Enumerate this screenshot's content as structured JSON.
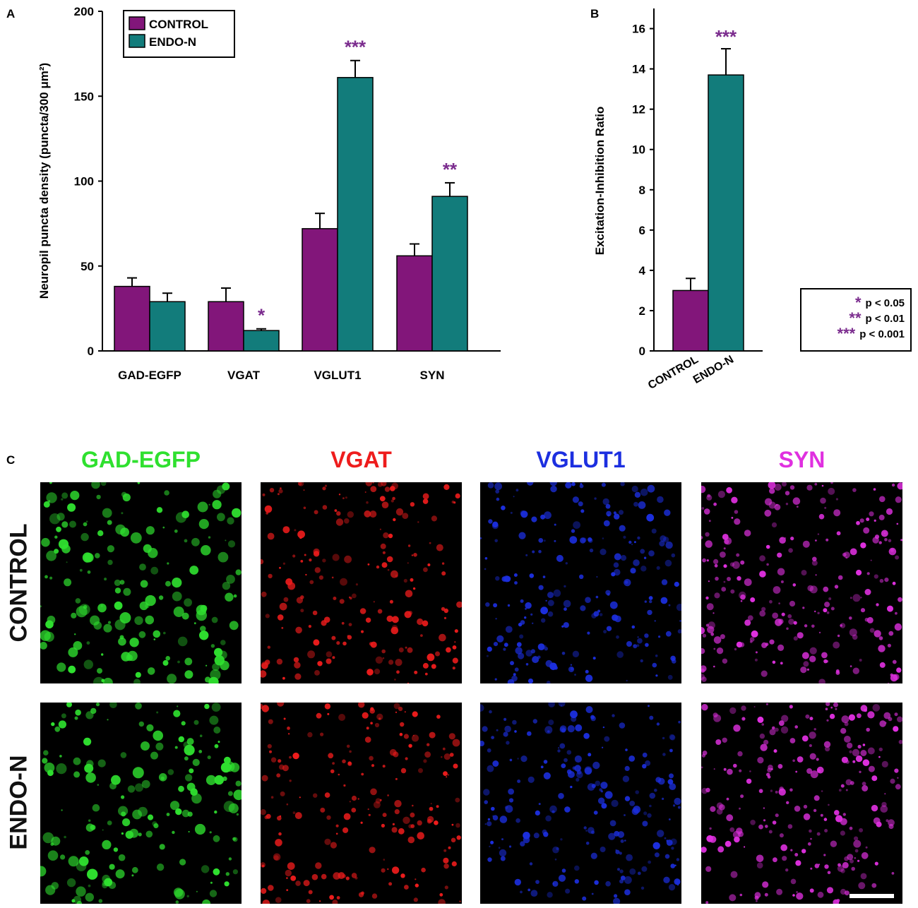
{
  "panels": {
    "a": "A",
    "b": "B",
    "c": "C"
  },
  "colors": {
    "control": "#82167a",
    "endo": "#127c7b",
    "sig": "#7b2c8e"
  },
  "chart_data": [
    {
      "type": "bar",
      "panel": "A",
      "categories": [
        "GAD-EGFP",
        "VGAT",
        "VGLUT1",
        "SYN"
      ],
      "series": [
        {
          "name": "CONTROL",
          "values": [
            38,
            29,
            72,
            56
          ],
          "errors": [
            5,
            8,
            9,
            7
          ]
        },
        {
          "name": "ENDO-N",
          "values": [
            29,
            12,
            161,
            91
          ],
          "errors": [
            5,
            1,
            10,
            8
          ]
        }
      ],
      "significance": [
        [
          "",
          ""
        ],
        [
          "",
          "*"
        ],
        [
          "",
          "***"
        ],
        [
          "",
          "**"
        ]
      ],
      "xlabel": "",
      "ylabel": "Neuropil puncta density (puncta/300 μm²)",
      "yticks": [
        0,
        50,
        100,
        150,
        200
      ],
      "ylim": [
        0,
        200
      ],
      "legend_placement": "top-left"
    },
    {
      "type": "bar",
      "panel": "B",
      "categories": [
        "CONTROL",
        "ENDO-N"
      ],
      "values": [
        3.0,
        13.7
      ],
      "errors": [
        0.6,
        1.3
      ],
      "significance": [
        "",
        "***"
      ],
      "ylabel": "Excitation-Inhibition Ratio",
      "yticks": [
        0,
        2,
        4,
        6,
        8,
        10,
        12,
        14,
        16
      ],
      "ylim": [
        0,
        17
      ]
    }
  ],
  "significance_legend": [
    {
      "stars": "*",
      "text": "p < 0.05"
    },
    {
      "stars": "**",
      "text": "p < 0.01"
    },
    {
      "stars": "***",
      "text": "p < 0.001"
    }
  ],
  "panel_c": {
    "columns": [
      {
        "label": "GAD-EGFP",
        "color": "#2fe02f"
      },
      {
        "label": "VGAT",
        "color": "#ee1c1c"
      },
      {
        "label": "VGLUT1",
        "color": "#1c2fe0"
      },
      {
        "label": "SYN",
        "color": "#e030e0"
      }
    ],
    "rows": [
      "CONTROL",
      "ENDO-N"
    ]
  }
}
